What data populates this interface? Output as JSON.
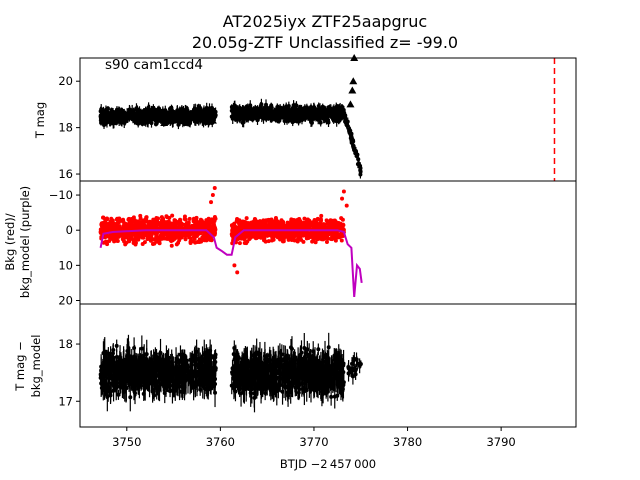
{
  "title_line1": "AT2025iyx  ZTF25aapgruc",
  "title_line2": "20.05g-ZTF Unclassified z= -99.0",
  "annotation": "s90 cam1ccd4",
  "xlabel": "BTJD −2 457 000",
  "colors": {
    "data": "#000000",
    "bkg": "#ff0000",
    "model": "#bf00bf",
    "marker": "#ff0000"
  },
  "chart_data": [
    {
      "type": "scatter",
      "panel": "top",
      "ylabel": "T mag",
      "xlim": [
        3745,
        3798
      ],
      "ylim": [
        21.0,
        15.7
      ],
      "y_inverted": true,
      "xticks": [
        3750,
        3760,
        3770,
        3780,
        3790
      ],
      "yticks": [
        16,
        18,
        20
      ],
      "yticklabels": [
        "16",
        "18",
        "20"
      ],
      "series": [
        {
          "segments": [
            {
              "x": [
                3747.2,
                3759.5
              ],
              "level": 18.5,
              "spread": 0.45
            },
            {
              "x": [
                3761.2,
                3773.2
              ],
              "level": 18.6,
              "spread": 0.45
            }
          ],
          "rise": {
            "x": [
              3773.2,
              3775.0
            ],
            "y": [
              18.6,
              16.2
            ]
          },
          "upper_limits": {
            "x": [
              3747.8,
              3749.3,
              3751.5,
              3754.0,
              3756.5,
              3759.2,
              3773.9,
              3774.1,
              3774.2,
              3774.3
            ],
            "y": [
              18.3,
              18.3,
              18.3,
              18.2,
              18.3,
              18.3,
              19.0,
              19.6,
              20.0,
              21.0
            ]
          }
        }
      ],
      "vline": {
        "x": 3795.7,
        "style": "dashed"
      }
    },
    {
      "type": "scatter",
      "panel": "middle",
      "ylabel": "Bkg (red)/\nbkg_model (purple)",
      "xlim": [
        3745,
        3798
      ],
      "ylim": [
        -14,
        21
      ],
      "yticks": [
        -10,
        0,
        10,
        20
      ],
      "yticklabels": [
        "−10",
        "0",
        "10",
        "20"
      ],
      "series": [
        {
          "name": "Bkg",
          "segments": [
            {
              "x": [
                3747.2,
                3759.5
              ],
              "level": 0,
              "spread": 5
            },
            {
              "x": [
                3761.2,
                3773.2
              ],
              "level": 0,
              "spread": 4.5
            }
          ]
        },
        {
          "name": "bkg_model",
          "x": [
            3747.2,
            3747.5,
            3748.5,
            3752,
            3756,
            3758.5,
            3759.3,
            3759.6,
            3760.2,
            3760.7,
            3761.2,
            3761.6,
            3762.5,
            3766,
            3770,
            3772.5,
            3773.2,
            3773.6,
            3774.0,
            3774.3,
            3774.6,
            3774.9,
            3775.1
          ],
          "y": [
            5,
            1,
            0.5,
            0,
            0,
            0,
            2,
            5,
            6,
            7,
            7,
            2,
            0,
            0,
            0,
            0,
            0.5,
            4,
            5,
            19,
            10,
            11,
            15
          ]
        }
      ]
    },
    {
      "type": "scatter",
      "panel": "bottom",
      "ylabel": "T mag −\nbkg_model",
      "xlim": [
        3745,
        3798
      ],
      "ylim": [
        18.7,
        16.55
      ],
      "y_inverted": true,
      "yticks": [
        17,
        18
      ],
      "yticklabels": [
        "17",
        "18"
      ],
      "series": [
        {
          "segments": [
            {
              "x": [
                3747.2,
                3759.5
              ],
              "level": 17.5,
              "spread": 0.5
            },
            {
              "x": [
                3761.2,
                3773.2
              ],
              "level": 17.5,
              "spread": 0.5
            },
            {
              "x": [
                3773.5,
                3775.2
              ],
              "level": 17.6,
              "spread": 0.3
            }
          ]
        }
      ]
    }
  ]
}
